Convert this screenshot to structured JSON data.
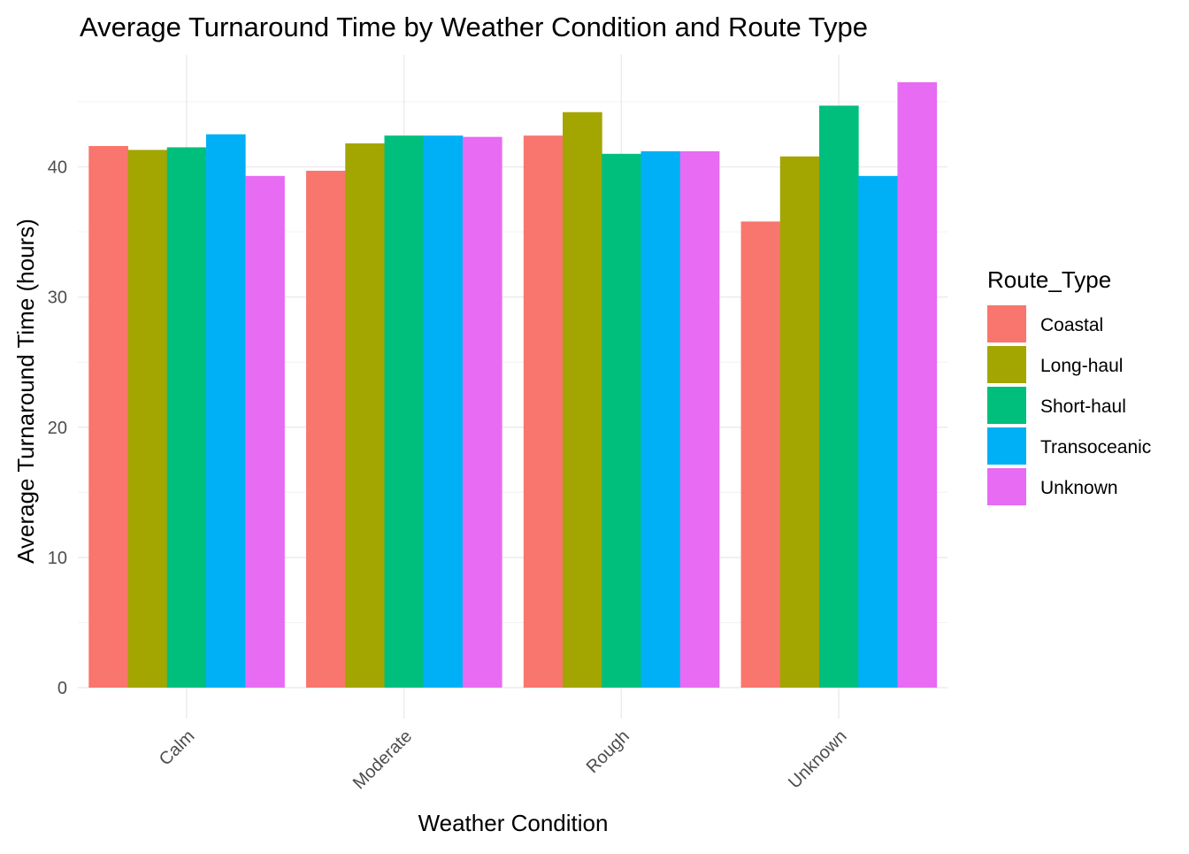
{
  "chart_data": {
    "type": "bar",
    "title": "Average Turnaround Time by Weather Condition and Route Type",
    "xlabel": "Weather Condition",
    "ylabel": "Average Turnaround Time (hours)",
    "categories": [
      "Calm",
      "Moderate",
      "Rough",
      "Unknown"
    ],
    "ylim": [
      0,
      48.6
    ],
    "yticks": [
      0,
      10,
      20,
      30,
      40
    ],
    "grid": true,
    "legend": {
      "title": "Route_Type",
      "position": "right"
    },
    "series": [
      {
        "name": "Coastal",
        "color": "#F8766D",
        "values": [
          41.6,
          39.7,
          42.4,
          35.8
        ]
      },
      {
        "name": "Long-haul",
        "color": "#A3A500",
        "values": [
          41.3,
          41.8,
          44.2,
          40.8
        ]
      },
      {
        "name": "Short-haul",
        "color": "#00BF7D",
        "values": [
          41.5,
          42.4,
          41.0,
          44.7
        ]
      },
      {
        "name": "Transoceanic",
        "color": "#00B0F6",
        "values": [
          42.5,
          42.4,
          41.2,
          39.3
        ]
      },
      {
        "name": "Unknown",
        "color": "#E76BF3",
        "values": [
          39.3,
          42.3,
          41.2,
          46.5
        ]
      }
    ]
  }
}
